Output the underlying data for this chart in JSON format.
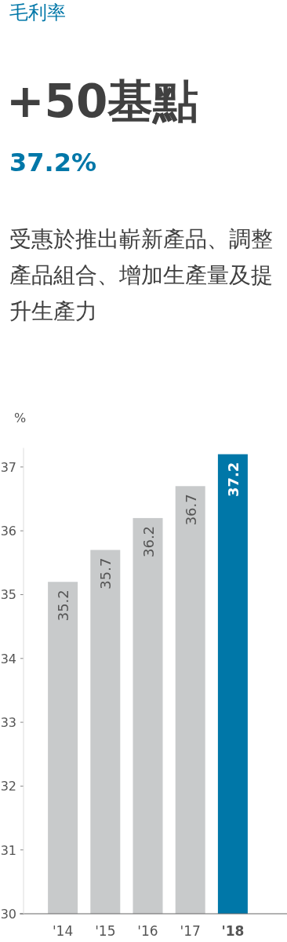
{
  "chart_data": {
    "type": "bar",
    "title": "毛利率",
    "subtitle": "+50基點",
    "annotations": [
      "37.2%",
      "受惠於推出嶄新產品、調整產品組合、增加生產量及提升生產力"
    ],
    "ylabel": "%",
    "categories": [
      "'14",
      "'15",
      "'16",
      "'17",
      "**'18**"
    ],
    "values": [
      35.2,
      35.7,
      36.2,
      36.7,
      37.2
    ],
    "colors": [
      "#c8cacb",
      "#c8cacb",
      "#c8cacb",
      "#c8cacb",
      "#0077a8"
    ],
    "ylim": [
      30,
      37.3
    ],
    "yticks": [
      30,
      31,
      32,
      33,
      34,
      35,
      36,
      37
    ],
    "data_labels": true
  }
}
